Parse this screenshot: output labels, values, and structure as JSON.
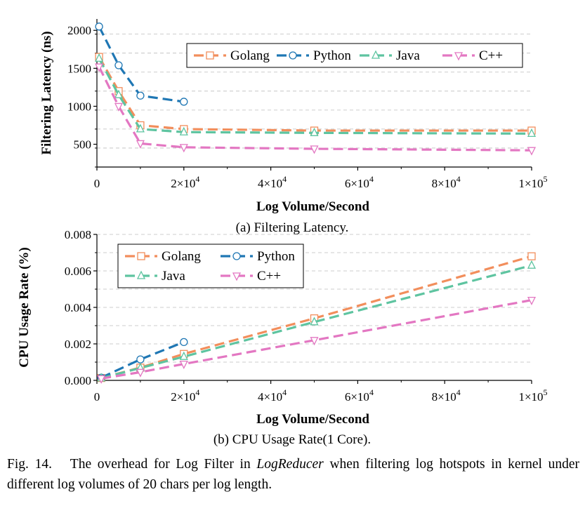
{
  "chart_data": [
    {
      "type": "line",
      "subtitle": "(a) Filtering Latency.",
      "xlabel": "Log Volume/Second",
      "ylabel": "Filtering Latency (ns)",
      "xlim": [
        0,
        100000
      ],
      "ylim": [
        200,
        2150
      ],
      "x_ticks": [
        0,
        20000,
        40000,
        60000,
        80000,
        100000
      ],
      "x_tick_labels": [
        {
          "base": "0",
          "exp": ""
        },
        {
          "base": "2×10",
          "exp": "4"
        },
        {
          "base": "4×10",
          "exp": "4"
        },
        {
          "base": "6×10",
          "exp": "4"
        },
        {
          "base": "8×10",
          "exp": "4"
        },
        {
          "base": "1×10",
          "exp": "5"
        }
      ],
      "y_ticks": [
        500,
        1000,
        1500,
        2000
      ],
      "y_tick_labels": [
        "500",
        "1000",
        "1500",
        "2000"
      ],
      "grid": "horizontal dashed",
      "legend": "top-right, single row",
      "series": [
        {
          "name": "Golang",
          "color": "#f28e5c",
          "marker": "square",
          "x": [
            500,
            5000,
            10000,
            20000,
            50000,
            100000
          ],
          "y": [
            1650,
            1200,
            750,
            700,
            680,
            680
          ]
        },
        {
          "name": "Python",
          "color": "#1f77b4",
          "marker": "circle",
          "x": [
            500,
            5000,
            10000,
            20000
          ],
          "y": [
            2050,
            1540,
            1140,
            1060
          ]
        },
        {
          "name": "Java",
          "color": "#5ec4a0",
          "marker": "triangle-up",
          "x": [
            500,
            5000,
            10000,
            20000,
            50000,
            100000
          ],
          "y": [
            1630,
            1150,
            700,
            660,
            650,
            640
          ]
        },
        {
          "name": "C++",
          "color": "#e377c2",
          "marker": "triangle-down",
          "x": [
            500,
            5000,
            10000,
            20000,
            50000,
            100000
          ],
          "y": [
            1520,
            1000,
            510,
            460,
            440,
            420
          ]
        }
      ]
    },
    {
      "type": "line",
      "subtitle": "(b) CPU Usage Rate(1 Core).",
      "xlabel": "Log Volume/Second",
      "ylabel": "CPU Usage Rate (%)",
      "xlim": [
        0,
        100000
      ],
      "ylim": [
        0,
        0.008
      ],
      "x_ticks": [
        0,
        20000,
        40000,
        60000,
        80000,
        100000
      ],
      "x_tick_labels": [
        {
          "base": "0",
          "exp": ""
        },
        {
          "base": "2×10",
          "exp": "4"
        },
        {
          "base": "4×10",
          "exp": "4"
        },
        {
          "base": "6×10",
          "exp": "4"
        },
        {
          "base": "8×10",
          "exp": "4"
        },
        {
          "base": "1×10",
          "exp": "5"
        }
      ],
      "y_ticks": [
        0,
        0.002,
        0.004,
        0.006,
        0.008
      ],
      "y_tick_labels": [
        "0.000",
        "0.002",
        "0.004",
        "0.006",
        "0.008"
      ],
      "grid": "horizontal dashed",
      "legend": "top-left, two rows",
      "series": [
        {
          "name": "Golang",
          "color": "#f28e5c",
          "marker": "square",
          "x": [
            1000,
            10000,
            20000,
            50000,
            100000
          ],
          "y": [
            0.00013,
            0.0007,
            0.00145,
            0.0034,
            0.0068
          ]
        },
        {
          "name": "Python",
          "color": "#1f77b4",
          "marker": "circle",
          "x": [
            1000,
            10000,
            20000
          ],
          "y": [
            0.00015,
            0.00115,
            0.0021
          ]
        },
        {
          "name": "Java",
          "color": "#5ec4a0",
          "marker": "triangle-up",
          "x": [
            1000,
            10000,
            20000,
            50000,
            100000
          ],
          "y": [
            0.00012,
            0.00068,
            0.0013,
            0.0032,
            0.0063
          ]
        },
        {
          "name": "C++",
          "color": "#e377c2",
          "marker": "triangle-down",
          "x": [
            1000,
            10000,
            20000,
            50000,
            100000
          ],
          "y": [
            0.0001,
            0.00045,
            0.0009,
            0.0022,
            0.0044
          ]
        }
      ]
    }
  ],
  "caption": {
    "label": "Fig. 14.",
    "text_before": "The overhead for Log Filter in",
    "emph": "LogReducer",
    "text_after": "when filtering log hotspots in kernel under different log volumes of 20 chars per log length."
  }
}
